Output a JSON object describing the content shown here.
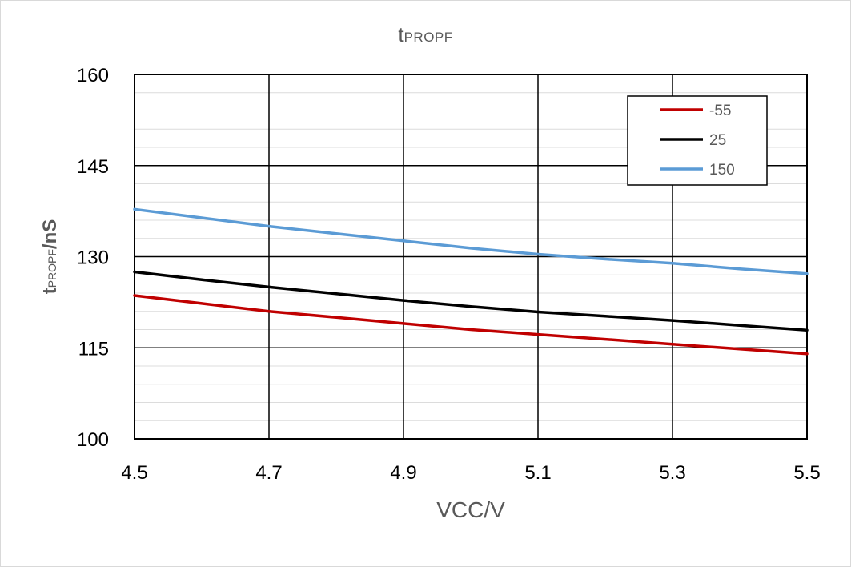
{
  "chart_data": {
    "type": "line",
    "title": {
      "main": "t",
      "sub": "PROPF"
    },
    "ylabel": {
      "main": "t",
      "sub": "PROPF",
      "tail": "/nS"
    },
    "xlabel": "VCC/V",
    "xlim": [
      4.5,
      5.5
    ],
    "ylim": [
      100,
      160
    ],
    "x_ticks": [
      4.5,
      4.7,
      4.9,
      5.1,
      5.3,
      5.5
    ],
    "x_tick_labels": [
      "4.5",
      "4.7",
      "4.9",
      "5.1",
      "5.3",
      "5.5"
    ],
    "y_ticks": [
      100,
      115,
      130,
      145,
      160
    ],
    "y_tick_labels": [
      "100",
      "115",
      "130",
      "145",
      "160"
    ],
    "grid": true,
    "legend_position": "top-right",
    "x": [
      4.5,
      4.6,
      4.7,
      4.8,
      4.9,
      5.0,
      5.1,
      5.2,
      5.3,
      5.4,
      5.5
    ],
    "series": [
      {
        "name": "-55",
        "color": "#c00000",
        "values": [
          123.6,
          122.3,
          121.0,
          120.0,
          119.0,
          118.0,
          117.2,
          116.4,
          115.6,
          114.8,
          114.0
        ]
      },
      {
        "name": "25",
        "color": "#000000",
        "values": [
          127.5,
          126.2,
          125.0,
          123.9,
          122.8,
          121.8,
          120.9,
          120.2,
          119.5,
          118.7,
          117.9
        ]
      },
      {
        "name": "150",
        "color": "#5b9bd5",
        "values": [
          137.8,
          136.4,
          135.0,
          133.8,
          132.6,
          131.4,
          130.4,
          129.6,
          128.9,
          128.0,
          127.2
        ]
      }
    ]
  }
}
